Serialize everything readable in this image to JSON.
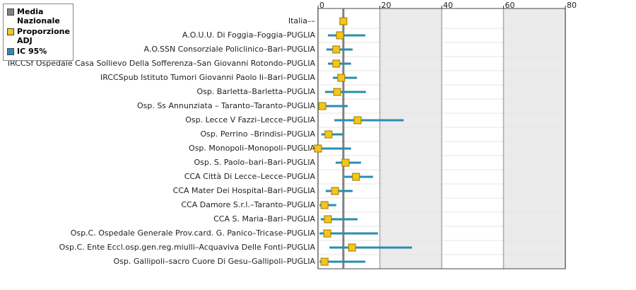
{
  "chart_data": {
    "type": "forest",
    "categories": [
      "Italia––",
      "A.O.U.U. Di Foggia–Foggia–PUGLIA",
      "A.O.SSN Consorziale Policlinico–Bari–PUGLIA",
      "IRCCSf Ospedale Casa Sollievo Della Sofferenza–San Giovanni Rotondo–PUGLIA",
      "IRCCSpub Istituto Tumori Giovanni Paolo Ii–Bari–PUGLIA",
      "Osp. Barletta–Barletta–PUGLIA",
      "Osp. Ss Annunziata – Taranto–Taranto–PUGLIA",
      "Osp. Lecce V Fazzi–Lecce–PUGLIA",
      "Osp. Perrino –Brindisi–PUGLIA",
      "Osp. Monopoli–Monopoli–PUGLIA",
      "Osp. S. Paolo–bari–Bari–PUGLIA",
      "CCA Città Di Lecce–Lecce–PUGLIA",
      "CCA Mater Dei Hospital–Bari–PUGLIA",
      "CCA Damore S.r.l.–Taranto–PUGLIA",
      "CCA S. Maria–Bari–PUGLIA",
      "Osp.C. Ospedale Generale Prov.card. G. Panico–Tricase–PUGLIA",
      "Osp.C. Ente Eccl.osp.gen.reg.miulli–Acquaviva Delle Fonti–PUGLIA",
      "Osp. Gallipoli–sacro Cuore Di Gesu–Gallipoli–PUGLIA"
    ],
    "series": [
      {
        "name": "Proporzione ADJ",
        "color": "#f5c518",
        "values": [
          8.2,
          7.1,
          5.9,
          5.9,
          7.5,
          6.2,
          1.4,
          12.8,
          3.4,
          0,
          8.9,
          12.3,
          5.5,
          2.1,
          3.2,
          3.0,
          11.0,
          2.1
        ]
      }
    ],
    "ci": {
      "name": "IC 95%",
      "color": "#2a8db0",
      "low": [
        7.9,
        3.2,
        2.7,
        3.2,
        4.8,
        2.3,
        0,
        5.3,
        1.1,
        0,
        5.7,
        8.5,
        2.5,
        0.5,
        0.9,
        0.5,
        3.7,
        0.5
      ],
      "high": [
        8.5,
        15.3,
        11.2,
        10.7,
        12.6,
        15.5,
        9.6,
        27.7,
        8.0,
        10.7,
        13.9,
        17.8,
        11.2,
        5.9,
        12.8,
        19.4,
        30.4,
        15.3
      ]
    },
    "reference": {
      "name": "Media Nazionale",
      "value": 8.2,
      "color": "#808080"
    },
    "xlim": [
      0,
      80
    ],
    "xticks": [
      0,
      20,
      40,
      60,
      80
    ],
    "shaded_bands": [
      [
        20,
        40
      ],
      [
        60,
        80
      ]
    ]
  }
}
